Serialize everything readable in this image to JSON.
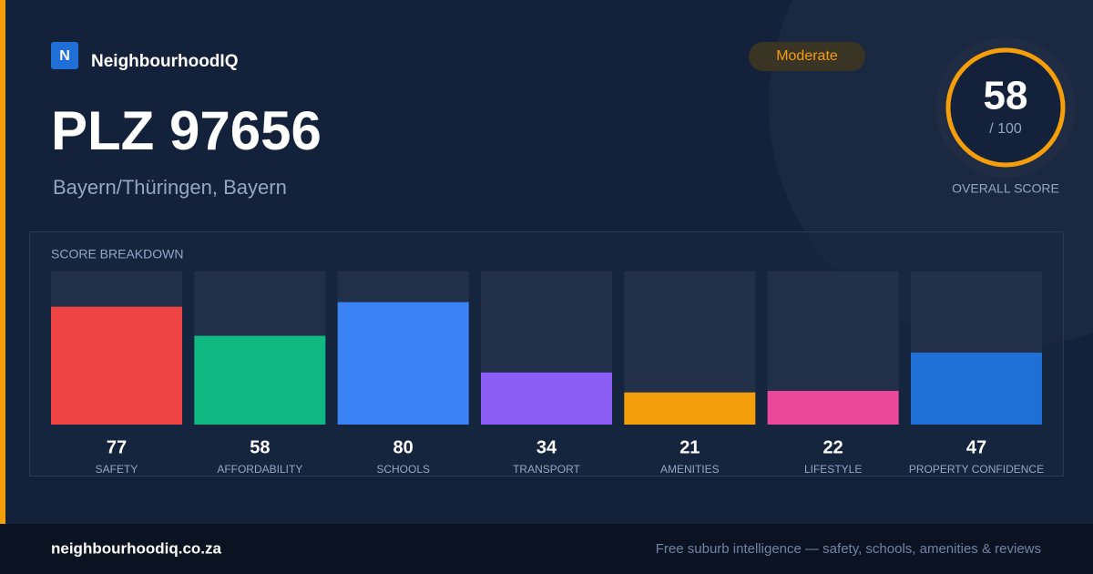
{
  "brand": {
    "logo_letter": "N",
    "name": "NeighbourhoodIQ"
  },
  "badge": "Moderate",
  "title": "PLZ 97656",
  "subtitle": "Bayern/Thüringen, Bayern",
  "score": {
    "value": 58,
    "max": {
      "value": 100,
      "label": "/ 100"
    },
    "label": "OVERALL SCORE"
  },
  "chart_data": {
    "type": "bar",
    "title": "SCORE BREAKDOWN",
    "categories": [
      "SAFETY",
      "AFFORDABILITY",
      "SCHOOLS",
      "TRANSPORT",
      "AMENITIES",
      "LIFESTYLE",
      "PROPERTY CONFIDENCE"
    ],
    "values": [
      77,
      58,
      80,
      34,
      21,
      22,
      47
    ],
    "colors": [
      "#ef4444",
      "#10b981",
      "#3b82f6",
      "#8b5cf6",
      "#f59e0b",
      "#ec4899",
      "#1f6fd6"
    ],
    "ylim": [
      0,
      100
    ]
  },
  "footer": {
    "site": "neighbourhoodiq.co.za",
    "tagline": "Free suburb intelligence — safety, schools, amenities & reviews"
  }
}
